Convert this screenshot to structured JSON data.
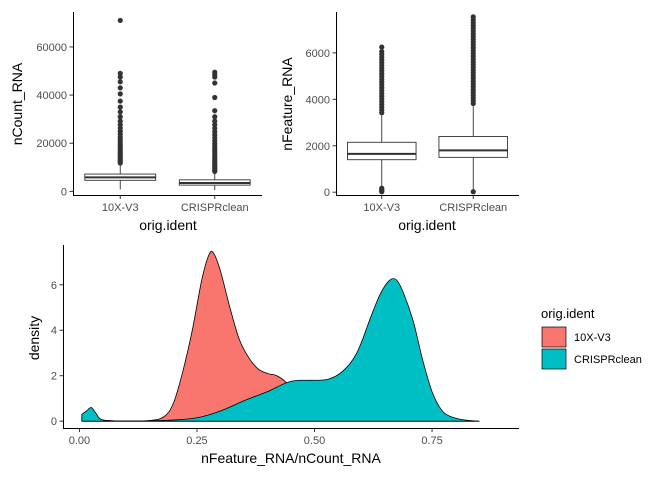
{
  "colors": {
    "10X-V3": "#F8766D",
    "CRISPRclean": "#00BFC4",
    "box_fill": "#ffffff",
    "box_line": "#333333",
    "outlier": "#333333"
  },
  "chart_data": [
    {
      "type": "box",
      "id": "ncount",
      "ylabel": "nCount_RNA",
      "xlabel": "orig.ident",
      "categories": [
        "10X-V3",
        "CRISPRclean"
      ],
      "yticks": [
        0,
        20000,
        40000,
        60000
      ],
      "ylim": [
        -1500,
        74500
      ],
      "boxes": [
        {
          "name": "10X-V3",
          "q1": 4600,
          "median": 5800,
          "q3": 7200,
          "whisker_low": 800,
          "whisker_high": 11200,
          "outliers": [
            11800,
            12400,
            13000,
            13600,
            14200,
            14900,
            15600,
            16300,
            17100,
            17900,
            18700,
            19600,
            20500,
            21500,
            22600,
            23800,
            25000,
            26300,
            27700,
            29200,
            31000,
            33000,
            35000,
            37500,
            40500,
            43000,
            45500,
            47500,
            49000,
            71000
          ]
        },
        {
          "name": "CRISPRclean",
          "q1": 2600,
          "median": 3500,
          "q3": 4800,
          "whisker_low": 500,
          "whisker_high": 7900,
          "outliers": [
            8300,
            8800,
            9300,
            9900,
            10500,
            11100,
            11800,
            12500,
            13300,
            14100,
            14900,
            15800,
            16700,
            17700,
            18700,
            19800,
            21000,
            22200,
            23500,
            24800,
            26200,
            27700,
            29200,
            31000,
            33500,
            39000,
            45000,
            47500,
            48500,
            49500
          ]
        }
      ]
    },
    {
      "type": "box",
      "id": "nfeature",
      "ylabel": "nFeature_RNA",
      "xlabel": "orig.ident",
      "categories": [
        "10X-V3",
        "CRISPRclean"
      ],
      "yticks": [
        0,
        2000,
        4000,
        6000
      ],
      "ylim": [
        -120,
        7760
      ],
      "boxes": [
        {
          "name": "10X-V3",
          "q1": 1400,
          "median": 1650,
          "q3": 2150,
          "whisker_low": 250,
          "whisker_high": 3300,
          "outliers": [
            20,
            60,
            110,
            170,
            3420,
            3540,
            3660,
            3780,
            3900,
            4020,
            4140,
            4260,
            4380,
            4500,
            4620,
            4740,
            4860,
            4980,
            5100,
            5220,
            5340,
            5460,
            5580,
            5700,
            5820,
            5940,
            6060,
            6250
          ]
        },
        {
          "name": "CRISPRclean",
          "q1": 1500,
          "median": 1800,
          "q3": 2400,
          "whisker_low": 100,
          "whisker_high": 3700,
          "outliers": [
            20,
            3820,
            3940,
            4060,
            4180,
            4300,
            4420,
            4540,
            4660,
            4780,
            4900,
            5020,
            5140,
            5260,
            5380,
            5500,
            5620,
            5740,
            5860,
            5980,
            6100,
            6220,
            6340,
            6460,
            6580,
            6700,
            6820,
            6940,
            7060,
            7180,
            7300,
            7420,
            7550
          ]
        }
      ]
    },
    {
      "type": "area",
      "id": "density",
      "ylabel": "density",
      "xlabel": "nFeature_RNA/nCount_RNA",
      "xticks": [
        0,
        0.25,
        0.5,
        0.75
      ],
      "xtick_labels": [
        "0.00",
        "0.25",
        "0.50",
        "0.75"
      ],
      "yticks": [
        0,
        2,
        4,
        6
      ],
      "xlim": [
        -0.035,
        0.935
      ],
      "ylim": [
        -0.3,
        7.75
      ],
      "legend": {
        "title": "orig.ident",
        "position": "right"
      },
      "series": [
        {
          "name": "10X-V3",
          "points": [
            [
              0.005,
              0.1
            ],
            [
              0.015,
              0.35
            ],
            [
              0.025,
              0.55
            ],
            [
              0.035,
              0.3
            ],
            [
              0.05,
              0.05
            ],
            [
              0.1,
              0.01
            ],
            [
              0.15,
              0.03
            ],
            [
              0.18,
              0.2
            ],
            [
              0.2,
              0.8
            ],
            [
              0.22,
              2.2
            ],
            [
              0.24,
              4.0
            ],
            [
              0.26,
              6.2
            ],
            [
              0.275,
              7.3
            ],
            [
              0.285,
              7.4
            ],
            [
              0.3,
              6.6
            ],
            [
              0.32,
              5.0
            ],
            [
              0.34,
              3.6
            ],
            [
              0.36,
              2.8
            ],
            [
              0.38,
              2.3
            ],
            [
              0.4,
              2.1
            ],
            [
              0.42,
              2.0
            ],
            [
              0.44,
              1.7
            ],
            [
              0.46,
              1.2
            ],
            [
              0.48,
              0.7
            ],
            [
              0.5,
              0.35
            ],
            [
              0.52,
              0.15
            ],
            [
              0.55,
              0.05
            ],
            [
              0.6,
              0.01
            ],
            [
              0.7,
              0.0
            ],
            [
              0.8,
              0.0
            ],
            [
              0.85,
              0.0
            ]
          ]
        },
        {
          "name": "CRISPRclean",
          "points": [
            [
              0.005,
              0.3
            ],
            [
              0.015,
              0.45
            ],
            [
              0.025,
              0.6
            ],
            [
              0.035,
              0.35
            ],
            [
              0.05,
              0.05
            ],
            [
              0.1,
              0.01
            ],
            [
              0.15,
              0.02
            ],
            [
              0.2,
              0.05
            ],
            [
              0.25,
              0.15
            ],
            [
              0.3,
              0.45
            ],
            [
              0.35,
              0.9
            ],
            [
              0.4,
              1.3
            ],
            [
              0.43,
              1.6
            ],
            [
              0.45,
              1.75
            ],
            [
              0.47,
              1.8
            ],
            [
              0.5,
              1.8
            ],
            [
              0.53,
              1.85
            ],
            [
              0.56,
              2.2
            ],
            [
              0.59,
              3.0
            ],
            [
              0.62,
              4.6
            ],
            [
              0.64,
              5.6
            ],
            [
              0.66,
              6.2
            ],
            [
              0.675,
              6.2
            ],
            [
              0.69,
              5.6
            ],
            [
              0.71,
              4.4
            ],
            [
              0.73,
              2.7
            ],
            [
              0.75,
              1.3
            ],
            [
              0.77,
              0.5
            ],
            [
              0.79,
              0.2
            ],
            [
              0.82,
              0.05
            ],
            [
              0.85,
              0.0
            ]
          ]
        }
      ]
    }
  ]
}
